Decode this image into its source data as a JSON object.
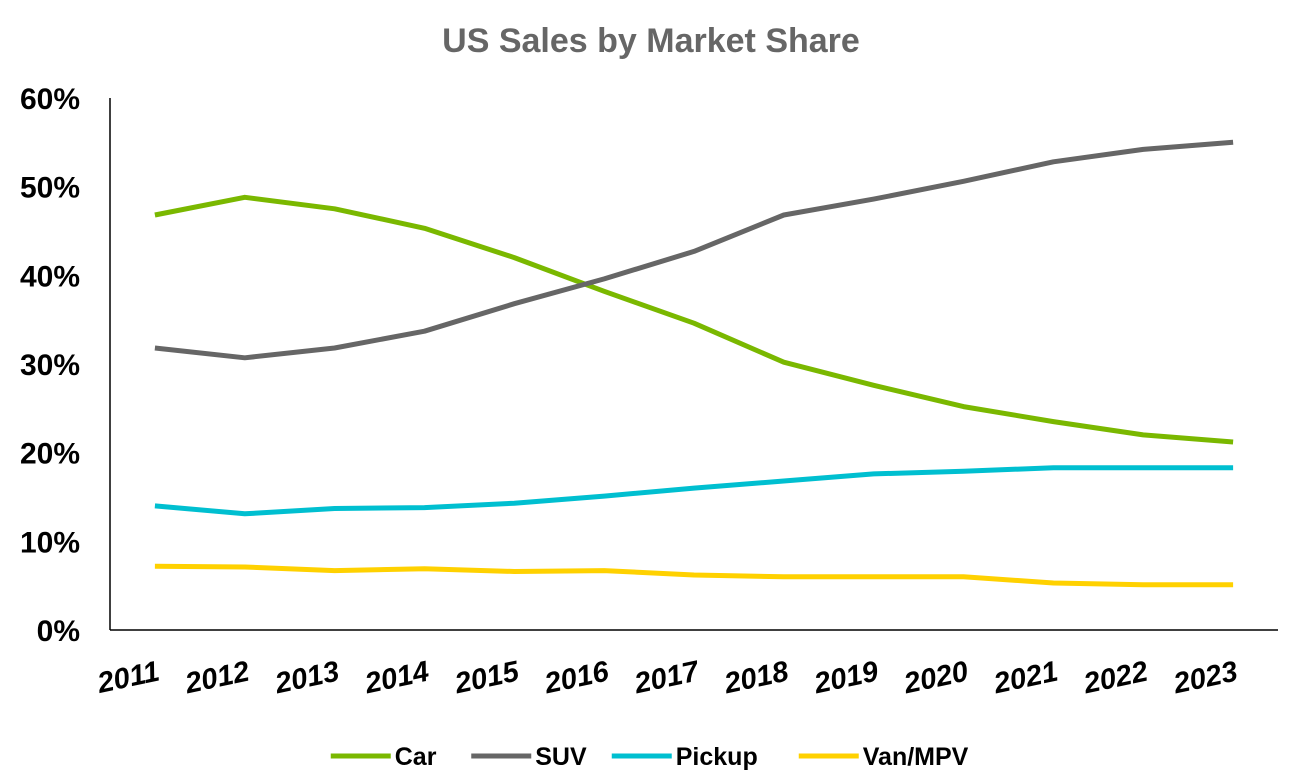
{
  "chart_data": {
    "type": "line",
    "title": "US Sales by Market Share",
    "xlabel": "",
    "ylabel": "",
    "x": [
      "2011",
      "2012",
      "2013",
      "2014",
      "2015",
      "2016",
      "2017",
      "2018",
      "2019",
      "2020",
      "2021",
      "2022",
      "2023"
    ],
    "ylim": [
      0,
      60
    ],
    "yticks": [
      0,
      10,
      20,
      30,
      40,
      50,
      60
    ],
    "ytick_labels": [
      "0%",
      "10%",
      "20%",
      "30%",
      "40%",
      "50%",
      "60%"
    ],
    "grid": false,
    "legend_position": "bottom",
    "series": [
      {
        "name": "Car",
        "color": "#7AB800",
        "values": [
          46.8,
          48.8,
          47.5,
          45.3,
          42.0,
          38.2,
          34.6,
          30.2,
          27.6,
          25.2,
          23.5,
          22.0,
          21.2
        ]
      },
      {
        "name": "SUV",
        "color": "#666666",
        "values": [
          31.8,
          30.7,
          31.8,
          33.7,
          36.8,
          39.6,
          42.7,
          46.8,
          48.6,
          50.6,
          52.8,
          54.2,
          55.0
        ]
      },
      {
        "name": "Pickup",
        "color": "#00BFD0",
        "values": [
          14.0,
          13.1,
          13.7,
          13.8,
          14.3,
          15.1,
          16.0,
          16.8,
          17.6,
          17.9,
          18.3,
          18.3,
          18.3
        ]
      },
      {
        "name": "Van/MPV",
        "color": "#FFD100",
        "values": [
          7.2,
          7.1,
          6.7,
          6.9,
          6.6,
          6.7,
          6.2,
          6.0,
          6.0,
          6.0,
          5.3,
          5.1,
          5.1
        ]
      }
    ]
  }
}
